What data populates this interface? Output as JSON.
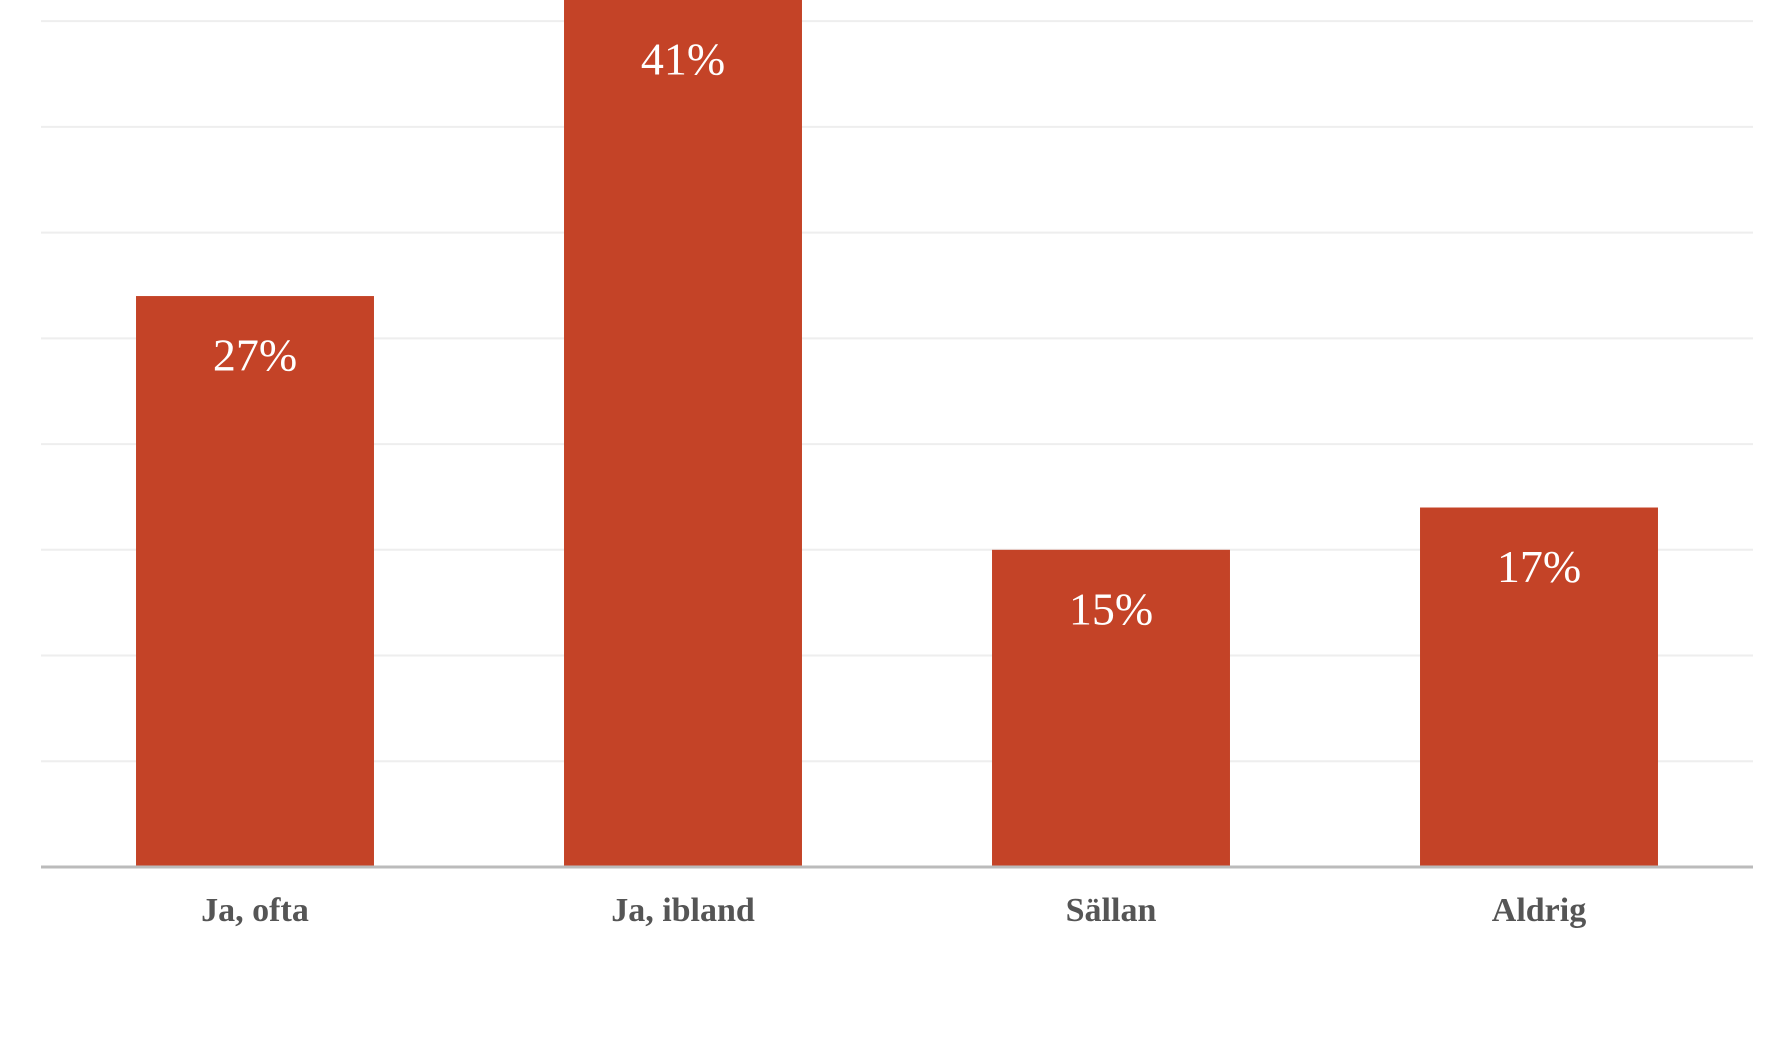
{
  "chart_data": {
    "type": "bar",
    "categories": [
      "Ja, ofta",
      "Ja, ibland",
      "Sällan",
      "Aldrig"
    ],
    "values": [
      27,
      41,
      15,
      17
    ],
    "value_labels": [
      "27%",
      "41%",
      "15%",
      "17%"
    ],
    "color": "#c44327",
    "ylim": [
      0,
      41
    ],
    "yticks": [
      0,
      5,
      10,
      15,
      20,
      25,
      30,
      35,
      40
    ],
    "grid": true
  }
}
